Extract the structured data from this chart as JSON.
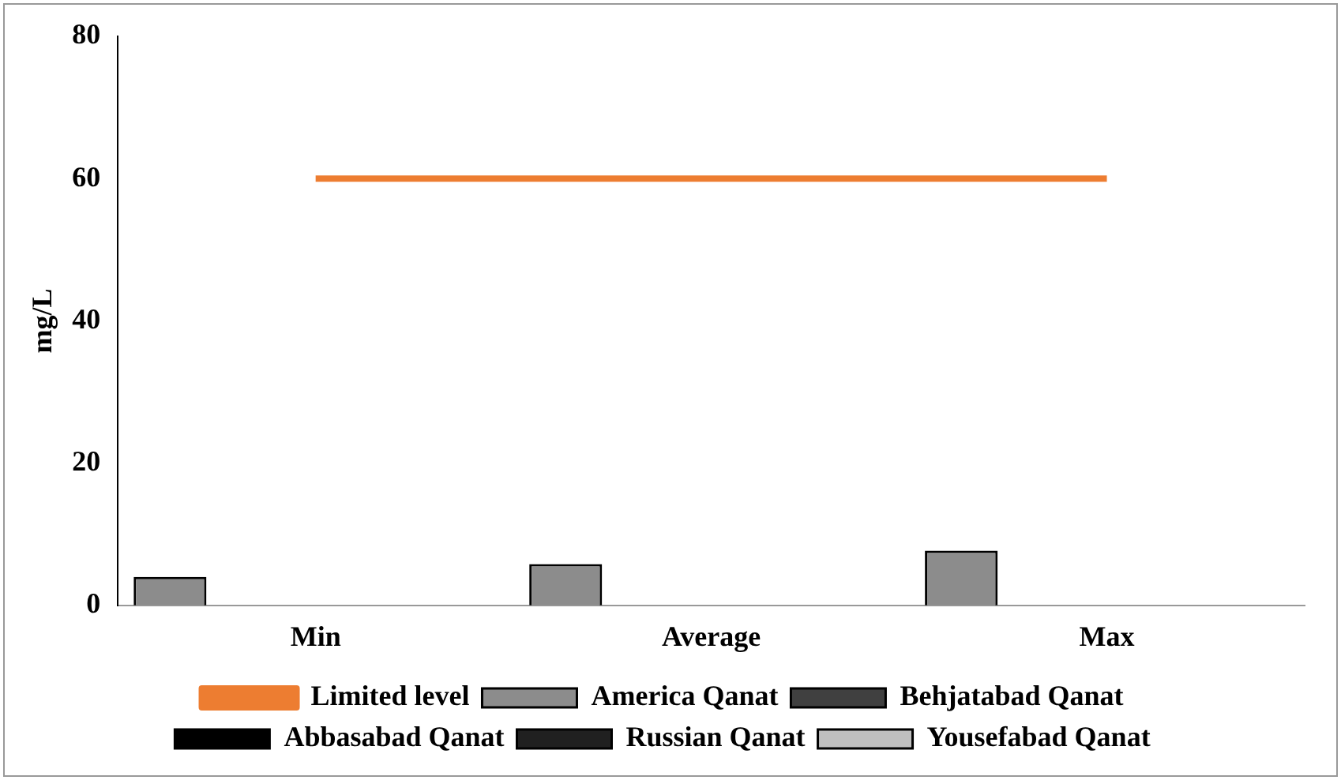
{
  "chart_data": {
    "type": "bar",
    "ylabel": "mg/L",
    "categories": [
      "Min",
      "Average",
      "Max"
    ],
    "series": [
      {
        "name": "America Qanat",
        "color": "#8c8c8c",
        "values": [
          4,
          5.8,
          7.7
        ]
      },
      {
        "name": "Behjatabad Qanat",
        "color": "#404040",
        "values": [
          0,
          0,
          0
        ]
      },
      {
        "name": "Abbasabad Qanat",
        "color": "#000000",
        "values": [
          0,
          0,
          0
        ]
      },
      {
        "name": "Russian Qanat",
        "color": "#202020",
        "values": [
          0,
          0,
          0
        ]
      },
      {
        "name": "Yousefabad Qanat",
        "color": "#bfbfbf",
        "values": [
          0,
          0,
          0
        ]
      },
      {
        "name": "Limited level",
        "type": "line",
        "color": "#ed7d31",
        "values": [
          60,
          60,
          60
        ],
        "marker": "none"
      }
    ],
    "ylim": [
      0,
      80
    ],
    "yticks": [
      0,
      20,
      40,
      60,
      80
    ],
    "grid": false,
    "legend": "bottom"
  }
}
